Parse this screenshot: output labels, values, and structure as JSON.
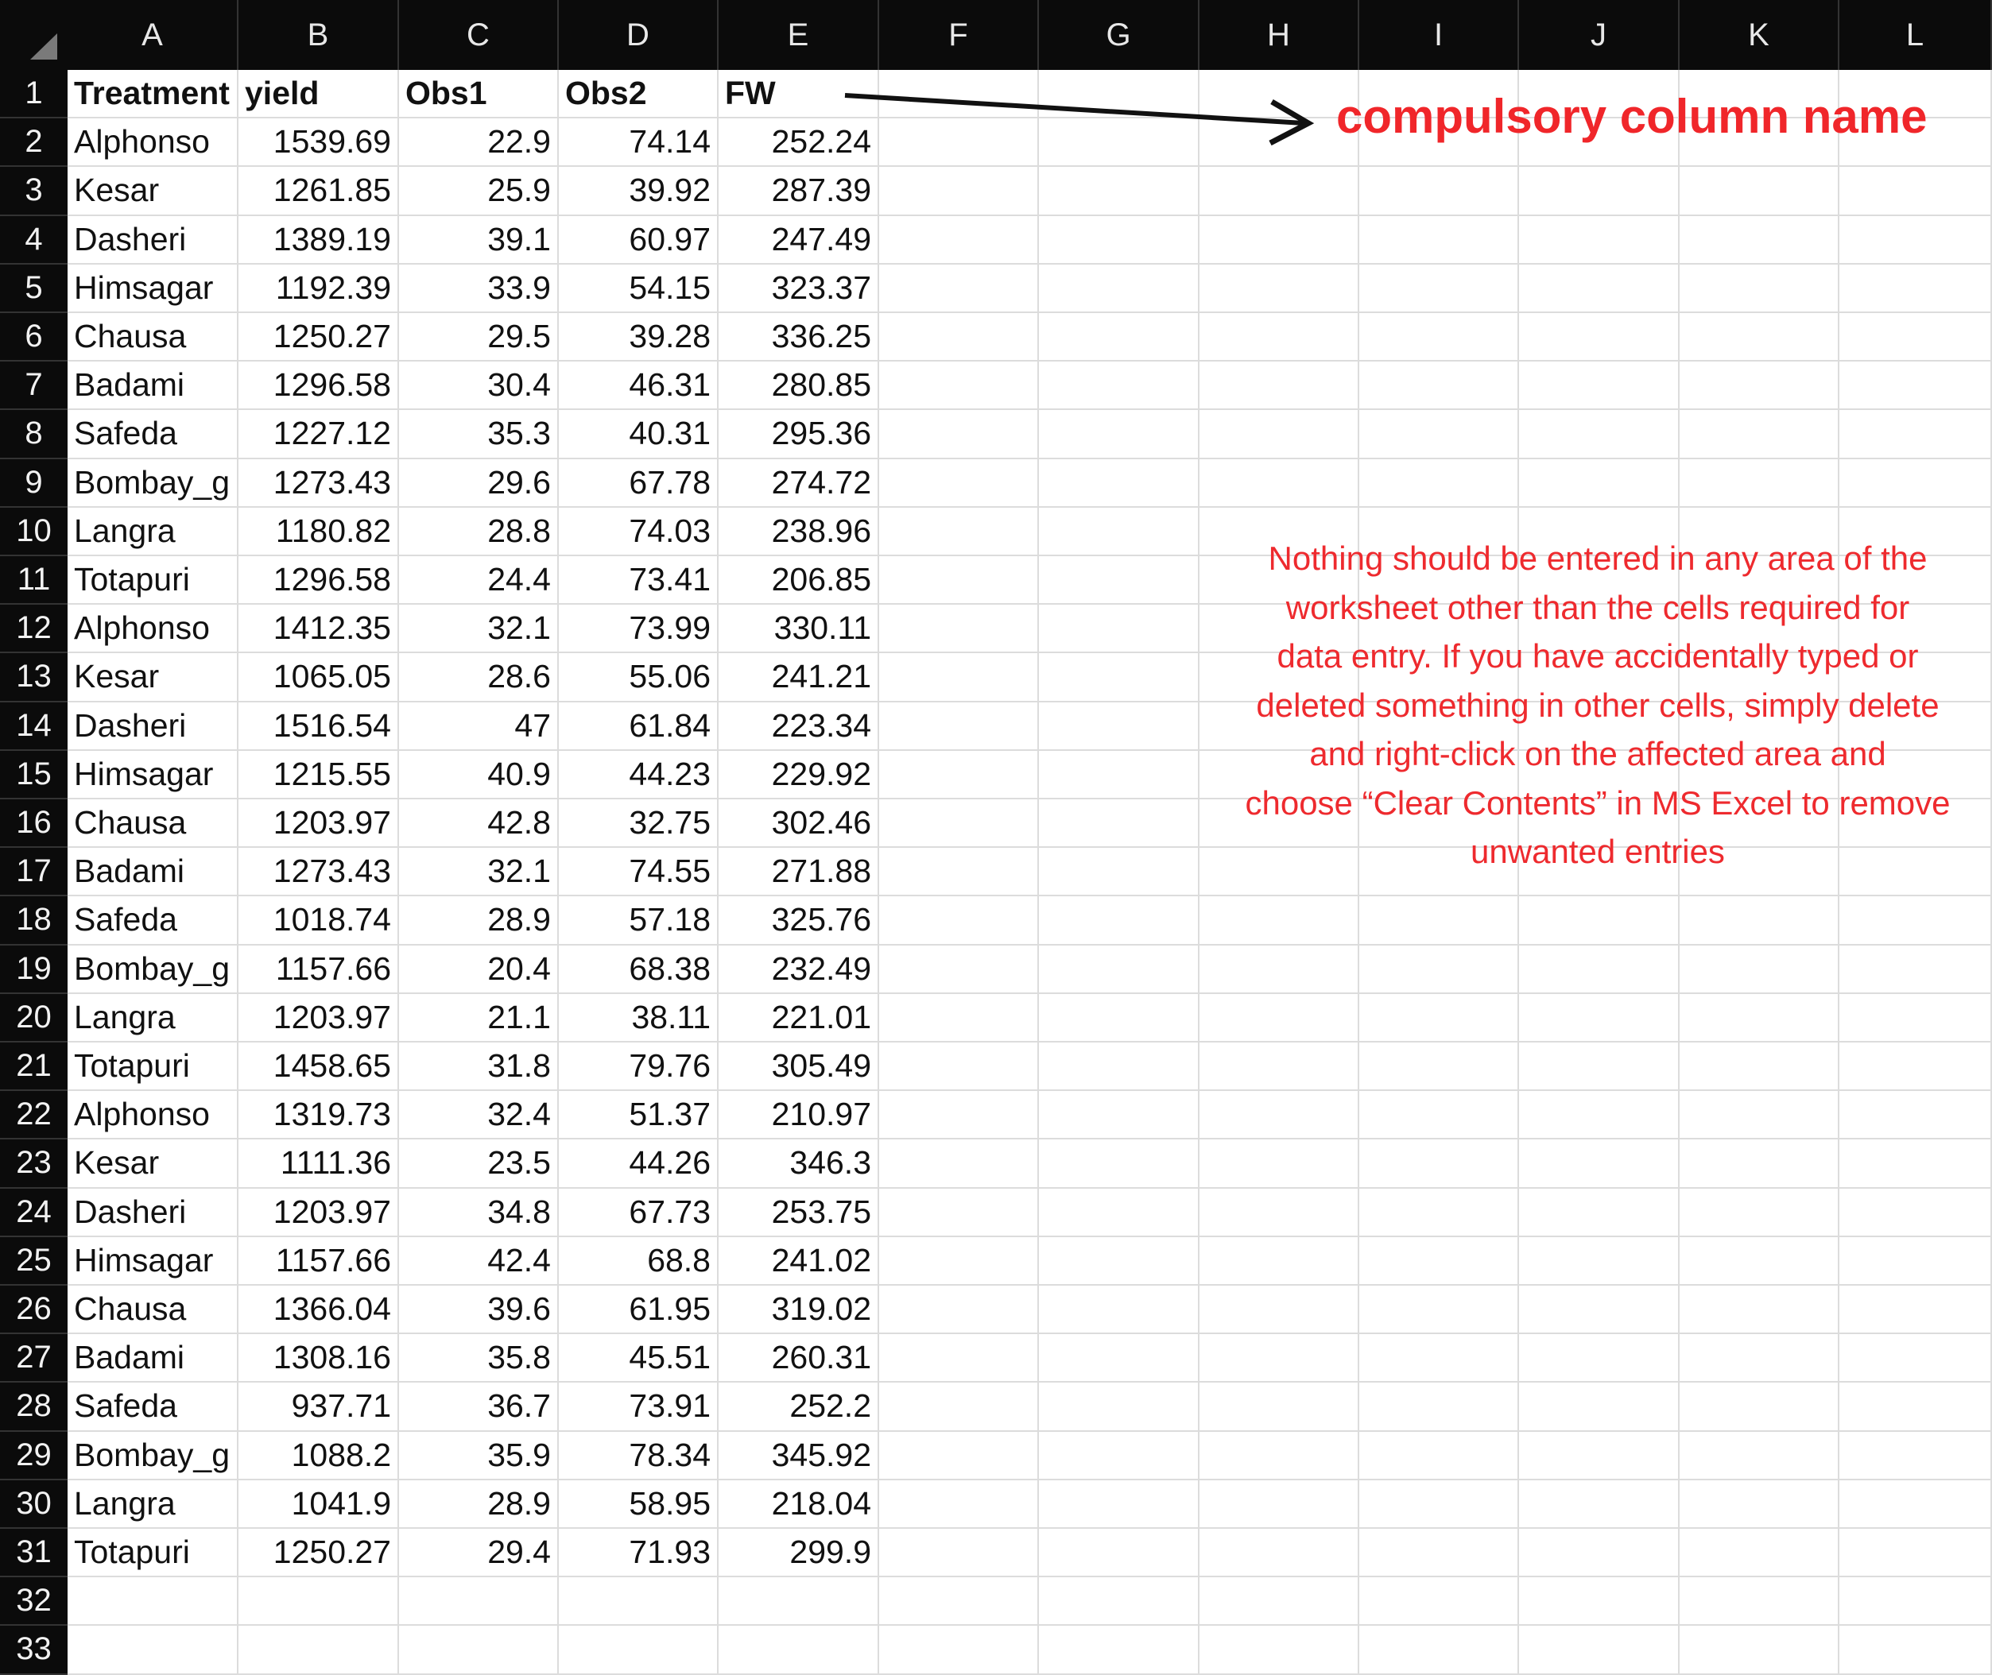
{
  "columns": [
    "A",
    "B",
    "C",
    "D",
    "E",
    "F",
    "G",
    "H",
    "I",
    "J",
    "K",
    "L"
  ],
  "row_numbers": [
    1,
    2,
    3,
    4,
    5,
    6,
    7,
    8,
    9,
    10,
    11,
    12,
    13,
    14,
    15,
    16,
    17,
    18,
    19,
    20,
    21,
    22,
    23,
    24,
    25,
    26,
    27,
    28,
    29,
    30,
    31,
    32,
    33
  ],
  "table": {
    "headers": [
      "Treatment",
      "yield",
      "Obs1",
      "Obs2",
      "FW"
    ],
    "rows": [
      [
        "Alphonso",
        "1539.69",
        "22.9",
        "74.14",
        "252.24"
      ],
      [
        "Kesar",
        "1261.85",
        "25.9",
        "39.92",
        "287.39"
      ],
      [
        "Dasheri",
        "1389.19",
        "39.1",
        "60.97",
        "247.49"
      ],
      [
        "Himsagar",
        "1192.39",
        "33.9",
        "54.15",
        "323.37"
      ],
      [
        "Chausa",
        "1250.27",
        "29.5",
        "39.28",
        "336.25"
      ],
      [
        "Badami",
        "1296.58",
        "30.4",
        "46.31",
        "280.85"
      ],
      [
        "Safeda",
        "1227.12",
        "35.3",
        "40.31",
        "295.36"
      ],
      [
        "Bombay_g",
        "1273.43",
        "29.6",
        "67.78",
        "274.72"
      ],
      [
        "Langra",
        "1180.82",
        "28.8",
        "74.03",
        "238.96"
      ],
      [
        "Totapuri",
        "1296.58",
        "24.4",
        "73.41",
        "206.85"
      ],
      [
        "Alphonso",
        "1412.35",
        "32.1",
        "73.99",
        "330.11"
      ],
      [
        "Kesar",
        "1065.05",
        "28.6",
        "55.06",
        "241.21"
      ],
      [
        "Dasheri",
        "1516.54",
        "47",
        "61.84",
        "223.34"
      ],
      [
        "Himsagar",
        "1215.55",
        "40.9",
        "44.23",
        "229.92"
      ],
      [
        "Chausa",
        "1203.97",
        "42.8",
        "32.75",
        "302.46"
      ],
      [
        "Badami",
        "1273.43",
        "32.1",
        "74.55",
        "271.88"
      ],
      [
        "Safeda",
        "1018.74",
        "28.9",
        "57.18",
        "325.76"
      ],
      [
        "Bombay_g",
        "1157.66",
        "20.4",
        "68.38",
        "232.49"
      ],
      [
        "Langra",
        "1203.97",
        "21.1",
        "38.11",
        "221.01"
      ],
      [
        "Totapuri",
        "1458.65",
        "31.8",
        "79.76",
        "305.49"
      ],
      [
        "Alphonso",
        "1319.73",
        "32.4",
        "51.37",
        "210.97"
      ],
      [
        "Kesar",
        "1111.36",
        "23.5",
        "44.26",
        "346.3"
      ],
      [
        "Dasheri",
        "1203.97",
        "34.8",
        "67.73",
        "253.75"
      ],
      [
        "Himsagar",
        "1157.66",
        "42.4",
        "68.8",
        "241.02"
      ],
      [
        "Chausa",
        "1366.04",
        "39.6",
        "61.95",
        "319.02"
      ],
      [
        "Badami",
        "1308.16",
        "35.8",
        "45.51",
        "260.31"
      ],
      [
        "Safeda",
        "937.71",
        "36.7",
        "73.91",
        "252.2"
      ],
      [
        "Bombay_g",
        "1088.2",
        "35.9",
        "78.34",
        "345.92"
      ],
      [
        "Langra",
        "1041.9",
        "28.9",
        "58.95",
        "218.04"
      ],
      [
        "Totapuri",
        "1250.27",
        "29.4",
        "71.93",
        "299.9"
      ]
    ]
  },
  "annotations": {
    "callout": "compulsory column name",
    "note_lines": [
      "Nothing should be entered in any area of the",
      "worksheet other than the cells required for",
      "data entry. If you have accidentally typed or",
      "deleted something in other cells, simply delete",
      "and  right-click on the affected area and",
      "choose “Clear Contents” in MS Excel to remove",
      "unwanted entries"
    ],
    "color": "#ee2a2e"
  },
  "colors": {
    "header_bg": "#0b0b0b",
    "grid": "#dcdcdc",
    "annotation": "#f0262a"
  }
}
